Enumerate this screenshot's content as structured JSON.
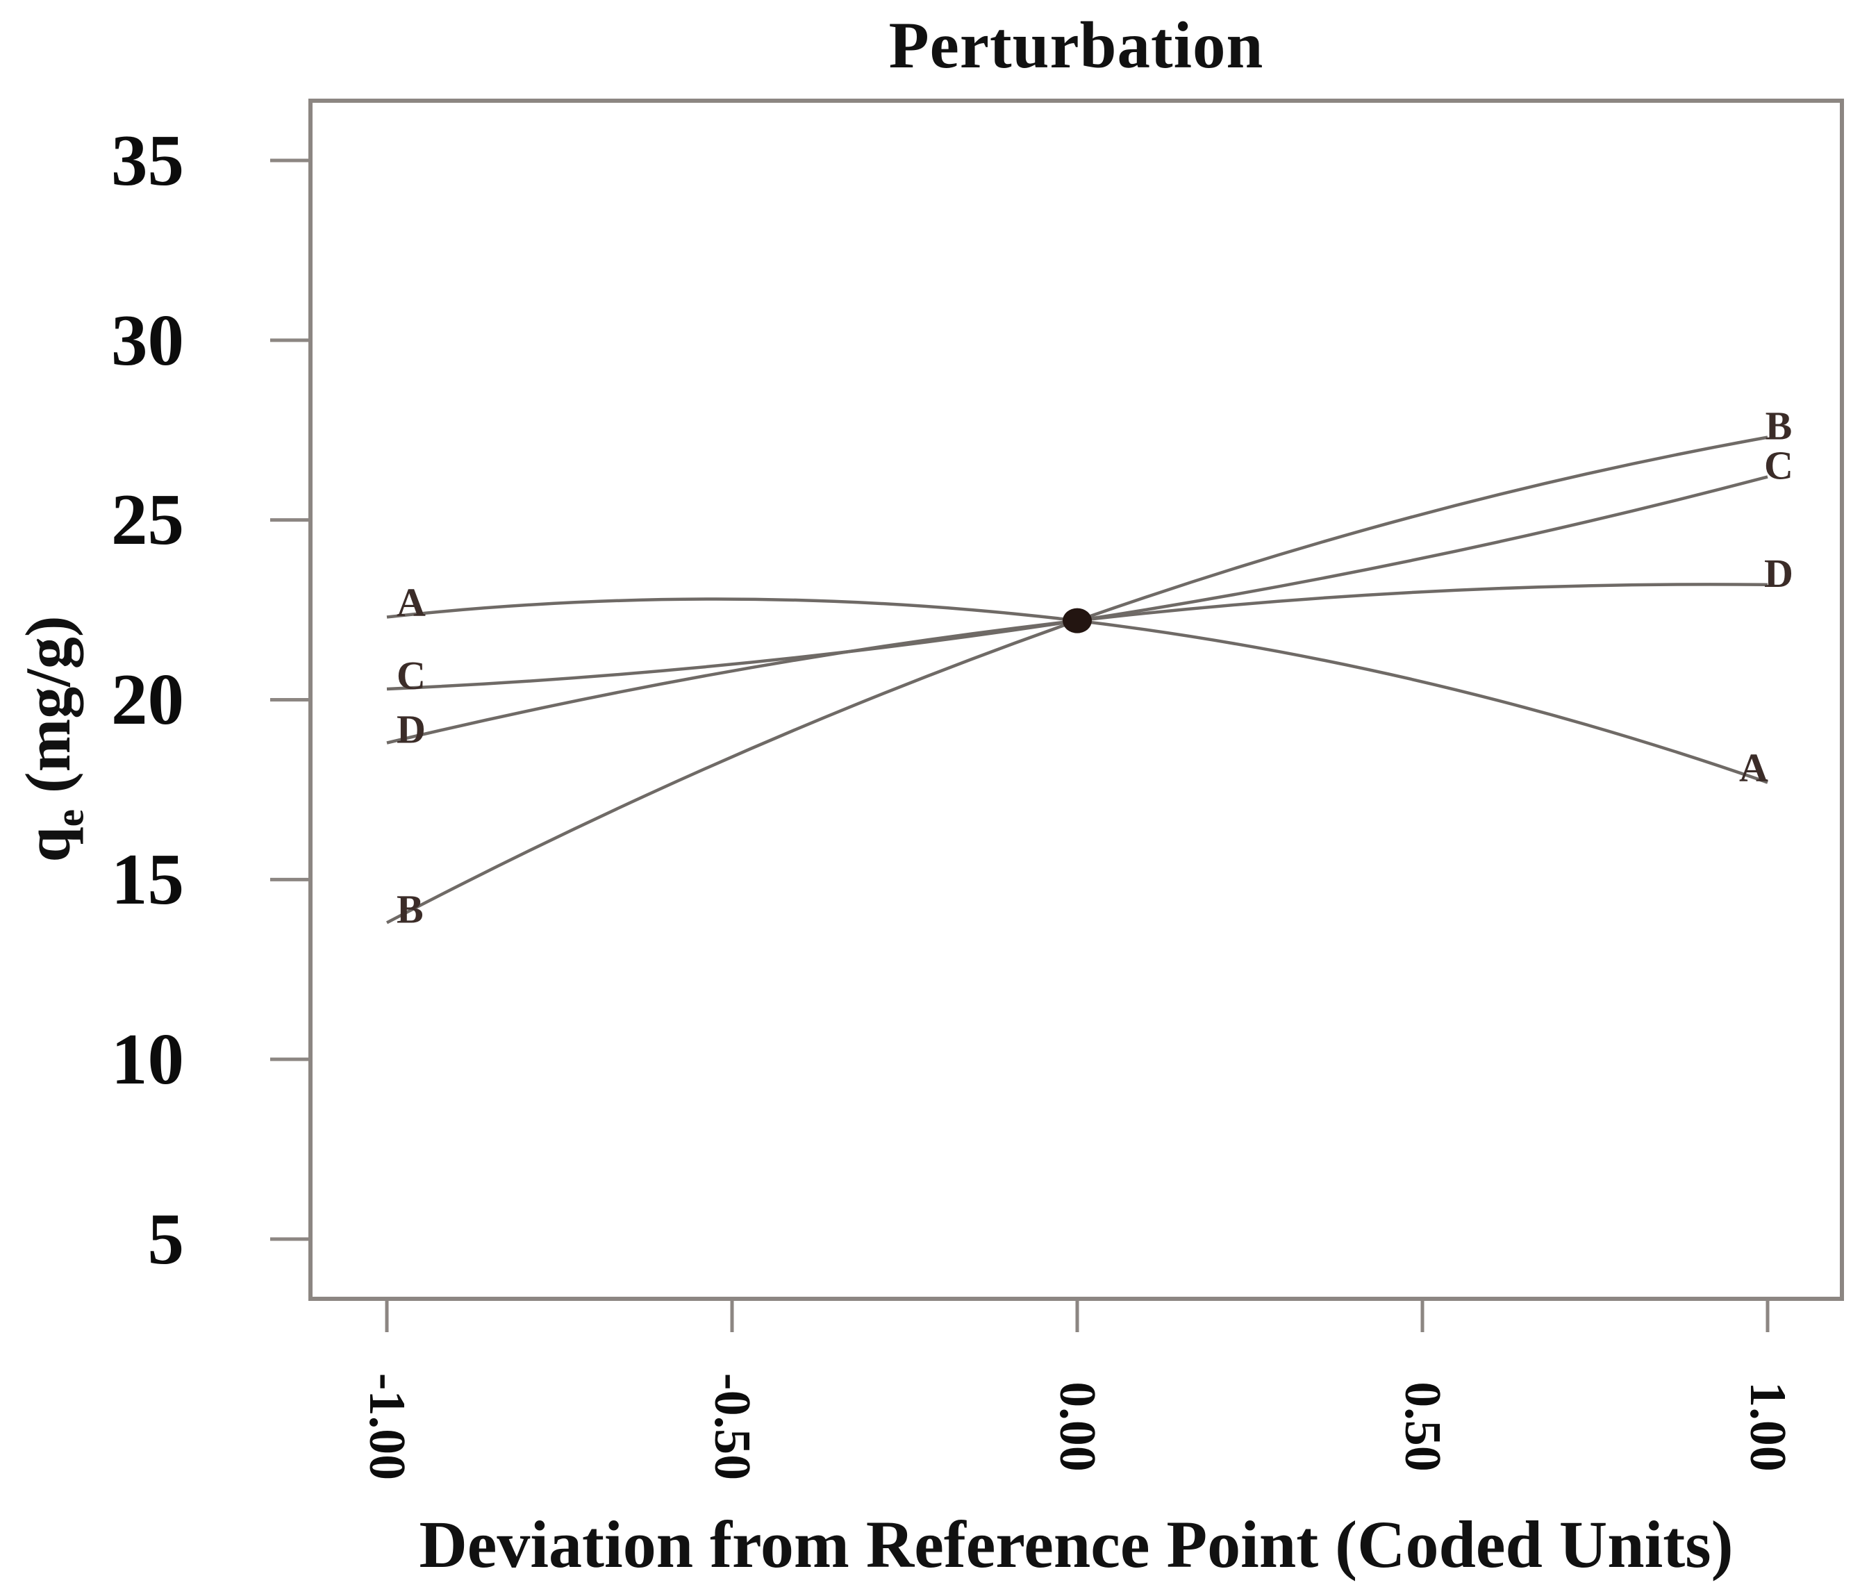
{
  "title": "Perturbation",
  "axes": {
    "x": {
      "label": "Deviation from Reference Point (Coded Units)",
      "ticks": [
        "-1.00",
        "-0.50",
        "0.00",
        "0.50",
        "1.00"
      ],
      "tick_values": [
        -1.0,
        -0.5,
        0.0,
        0.5,
        1.0
      ]
    },
    "y": {
      "label_main": "q",
      "label_sub": "e",
      "label_units": " (mg/g)",
      "ticks": [
        "35",
        "30",
        "25",
        "20",
        "15",
        "10",
        "5"
      ],
      "tick_values": [
        35,
        30,
        25,
        20,
        15,
        10,
        5
      ]
    }
  },
  "chart_data": {
    "type": "line",
    "title": "Perturbation",
    "xlabel": "Deviation from Reference Point (Coded Units)",
    "ylabel": "qe (mg/g)",
    "x": [
      -1.0,
      -0.5,
      0.0,
      0.5,
      1.0
    ],
    "series": [
      {
        "name": "A",
        "values": [
          22.3,
          22.8,
          22.2,
          20.5,
          17.7
        ]
      },
      {
        "name": "B",
        "values": [
          13.8,
          18.4,
          22.2,
          25.1,
          27.3
        ]
      },
      {
        "name": "C",
        "values": [
          20.3,
          21.0,
          22.2,
          23.9,
          26.2
        ]
      },
      {
        "name": "D",
        "values": [
          18.8,
          20.8,
          22.2,
          23.0,
          23.2
        ]
      }
    ],
    "reference_point": {
      "x": 0.0,
      "y": 22.2
    },
    "xlim": [
      -1.1,
      1.1
    ],
    "ylim": [
      3.3,
      36.7
    ],
    "grid": false,
    "legend": "curve-end-labels",
    "curve_shape": "quadratic"
  },
  "colors": {
    "background": "#ffffff",
    "frame": "#8c8682",
    "curve": "#6f6a66",
    "reference_dot": "#231511",
    "curve_label": "#3b2c28",
    "axis_text": "#0c0c0c"
  }
}
